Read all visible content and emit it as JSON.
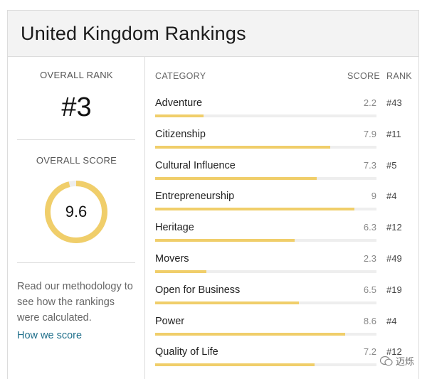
{
  "header": {
    "title": "United Kingdom Rankings"
  },
  "overview": {
    "rank_label": "OVERALL RANK",
    "rank_value": "#3",
    "score_label": "OVERALL SCORE",
    "score_value": "9.6",
    "score_fraction": 0.96,
    "methodology_text": "Read our methodology to see how the rankings were calculated.",
    "how_link": "How we score"
  },
  "table": {
    "col_category": "CATEGORY",
    "col_score": "SCORE",
    "col_rank": "RANK",
    "rows": [
      {
        "category": "Adventure",
        "score": "2.2",
        "rank": "#43",
        "value": 2.2
      },
      {
        "category": "Citizenship",
        "score": "7.9",
        "rank": "#11",
        "value": 7.9
      },
      {
        "category": "Cultural Influence",
        "score": "7.3",
        "rank": "#5",
        "value": 7.3
      },
      {
        "category": "Entrepreneurship",
        "score": "9",
        "rank": "#4",
        "value": 9
      },
      {
        "category": "Heritage",
        "score": "6.3",
        "rank": "#12",
        "value": 6.3
      },
      {
        "category": "Movers",
        "score": "2.3",
        "rank": "#49",
        "value": 2.3
      },
      {
        "category": "Open for Business",
        "score": "6.5",
        "rank": "#19",
        "value": 6.5
      },
      {
        "category": "Power",
        "score": "8.6",
        "rank": "#4",
        "value": 8.6
      },
      {
        "category": "Quality of Life",
        "score": "7.2",
        "rank": "#12",
        "value": 7.2
      }
    ]
  },
  "colors": {
    "accent": "#f0ce6a",
    "track": "#eeeeee",
    "link": "#1f6f8b"
  },
  "watermark": {
    "text": "迈烁"
  }
}
